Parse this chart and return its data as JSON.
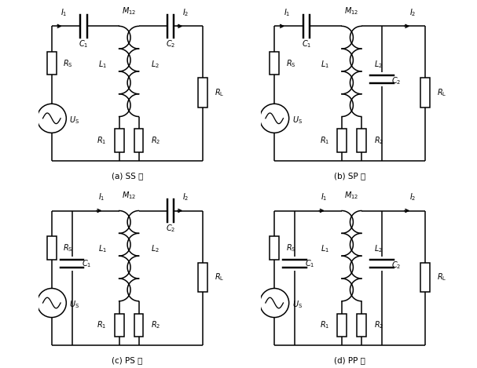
{
  "background": "#ffffff",
  "line_color": "#000000",
  "line_width": 1.1,
  "font_size": 7.5,
  "captions": [
    "(a) SS 型",
    "(b) SP 型",
    "(c) PS 型",
    "(d) PP 型"
  ]
}
